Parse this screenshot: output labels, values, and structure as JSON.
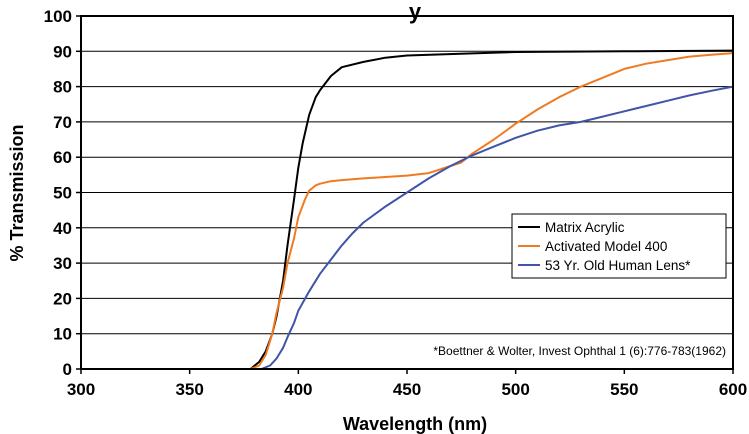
{
  "chart_data": {
    "type": "line",
    "title": "y",
    "xlabel": "Wavelength (nm)",
    "ylabel": "% Transmission",
    "xlim": [
      300,
      600
    ],
    "ylim": [
      0,
      100
    ],
    "x_ticks": [
      300,
      350,
      400,
      450,
      500,
      550,
      600
    ],
    "y_ticks": [
      0,
      10,
      20,
      30,
      40,
      50,
      60,
      70,
      80,
      90,
      100
    ],
    "grid": "horizontal",
    "legend_position": "lower-right",
    "annotation": "*Boettner & Wolter, Invest Ophthal 1 (6):776-783(1962)",
    "series": [
      {
        "name": "Matrix Acrylic",
        "color": "#000000",
        "x": [
          300,
          378,
          382,
          385,
          388,
          390,
          393,
          395,
          398,
          400,
          402,
          405,
          408,
          410,
          415,
          420,
          430,
          440,
          450,
          480,
          500,
          550,
          600
        ],
        "y": [
          0,
          0,
          2,
          5,
          10,
          15,
          25,
          35,
          48,
          57,
          64,
          72,
          77,
          79,
          83,
          85.5,
          87,
          88.2,
          88.8,
          89.4,
          89.8,
          90,
          90.2
        ]
      },
      {
        "name": "Activated Model 400",
        "color": "#f07a21",
        "x": [
          300,
          378,
          382,
          385,
          388,
          390,
          393,
          395,
          398,
          400,
          403,
          405,
          408,
          410,
          415,
          420,
          430,
          440,
          450,
          460,
          465,
          470,
          475,
          480,
          490,
          500,
          510,
          520,
          530,
          540,
          550,
          560,
          570,
          580,
          590,
          600
        ],
        "y": [
          0,
          0,
          1,
          4,
          10,
          16,
          23,
          30,
          37,
          43,
          48,
          50.5,
          52,
          52.5,
          53.2,
          53.5,
          54,
          54.4,
          54.8,
          55.5,
          56.5,
          57.5,
          58.5,
          61,
          65,
          69.5,
          73.5,
          77,
          80,
          82.5,
          85,
          86.5,
          87.5,
          88.5,
          89,
          89.5
        ]
      },
      {
        "name": "53 Yr. Old Human Lens*",
        "color": "#3f55a8",
        "x": [
          300,
          383,
          387,
          390,
          393,
          395,
          398,
          400,
          405,
          410,
          415,
          420,
          425,
          430,
          440,
          450,
          460,
          470,
          480,
          490,
          500,
          510,
          520,
          530,
          540,
          550,
          560,
          570,
          580,
          590,
          600
        ],
        "y": [
          0,
          0,
          1,
          3,
          6,
          9,
          13,
          16.5,
          22,
          27,
          31,
          35,
          38.5,
          41.5,
          46,
          50,
          54,
          57.5,
          60.5,
          63,
          65.5,
          67.5,
          69,
          70,
          71.5,
          73,
          74.5,
          76,
          77.5,
          78.8,
          80
        ]
      }
    ]
  }
}
